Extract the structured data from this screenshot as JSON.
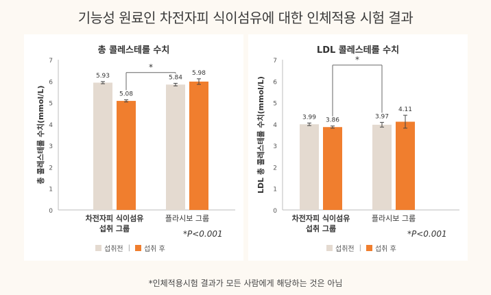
{
  "main_title": "기능성 원료인 차전자피 식이섬유에 대한 인체적용 시험 결과",
  "footnote": "*인체적용시험 결과가 모든 사람에게 해당하는 것은 아님",
  "legend": {
    "before": "섭취전",
    "after": "섭취 후",
    "separator": "|"
  },
  "colors": {
    "before": "#e4dad0",
    "after": "#f07e2e",
    "panel": "#ffffff",
    "background": "#fdf9f3"
  },
  "chart_data": [
    {
      "type": "bar",
      "title": "총 콜레스테롤 수치",
      "ylabel": "총 콜레스테롤 수치(mmol/L)",
      "ylim": [
        0,
        7
      ],
      "yticks": [
        0,
        1,
        2,
        3,
        4,
        5,
        6,
        7
      ],
      "categories": [
        "차전자피 식이섬유|섭취 그룹",
        "플라시보 그룹"
      ],
      "series": [
        {
          "name": "섭취전",
          "values": [
            5.93,
            5.84
          ],
          "labels": [
            "5.93",
            "5.84"
          ],
          "errors": [
            0.05,
            0.06
          ]
        },
        {
          "name": "섭취 후",
          "values": [
            5.08,
            5.98
          ],
          "labels": [
            "5.08",
            "5.98"
          ],
          "errors": [
            0.05,
            0.13
          ]
        }
      ],
      "significance": "*",
      "pvalue": "*P<0.001"
    },
    {
      "type": "bar",
      "title": "LDL 콜레스테롤 수치",
      "ylabel": "LDL 총 콜레스테롤 수치(mmol/L)",
      "ylim": [
        0,
        7
      ],
      "yticks": [
        0,
        1,
        2,
        3,
        4,
        5,
        6,
        7
      ],
      "categories": [
        "차전자피 식이섬유|섭취 그룹",
        "플라시보 그룹"
      ],
      "series": [
        {
          "name": "섭취전",
          "values": [
            3.99,
            3.97
          ],
          "labels": [
            "3.99",
            "3.97"
          ],
          "errors": [
            0.06,
            0.11
          ]
        },
        {
          "name": "섭취 후",
          "values": [
            3.86,
            4.11
          ],
          "labels": [
            "3.86",
            "4.11"
          ],
          "errors": [
            0.05,
            0.3
          ]
        }
      ],
      "significance": "*",
      "pvalue": "*P<0.001"
    }
  ]
}
